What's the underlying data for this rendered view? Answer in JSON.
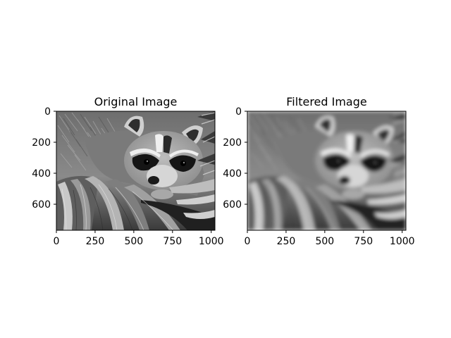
{
  "figure": {
    "panels": [
      {
        "id": "original",
        "title": "Original Image",
        "blur": 0,
        "x_ticks": [
          "0",
          "250",
          "500",
          "750",
          "1000"
        ],
        "y_ticks": [
          "0",
          "200",
          "400",
          "600"
        ],
        "x_tick_values": [
          0,
          250,
          500,
          750,
          1000
        ],
        "y_tick_values": [
          0,
          200,
          400,
          600
        ],
        "x_range": [
          0,
          1024
        ],
        "y_range": [
          0,
          768
        ]
      },
      {
        "id": "filtered",
        "title": "Filtered Image",
        "blur": 1,
        "x_ticks": [
          "0",
          "250",
          "500",
          "750",
          "1000"
        ],
        "y_ticks": [
          "0",
          "200",
          "400",
          "600"
        ],
        "x_tick_values": [
          0,
          250,
          500,
          750,
          1000
        ],
        "y_tick_values": [
          0,
          200,
          400,
          600
        ],
        "x_range": [
          0,
          1024
        ],
        "y_range": [
          0,
          768
        ]
      }
    ],
    "colormap": "gray"
  }
}
